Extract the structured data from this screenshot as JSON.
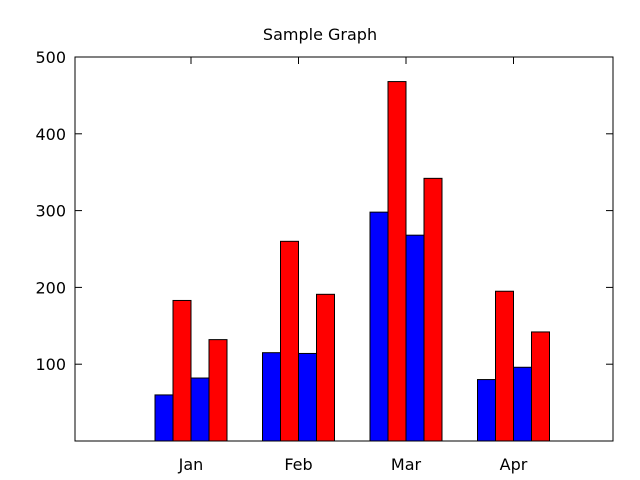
{
  "chart_data": {
    "type": "bar",
    "title": "Sample Graph",
    "xlabel": "",
    "ylabel": "",
    "categories": [
      "Jan",
      "Feb",
      "Mar",
      "Apr"
    ],
    "ylim": [
      0,
      500
    ],
    "yticks": [
      100,
      200,
      300,
      400,
      500
    ],
    "grid": false,
    "legend": "none",
    "bars_per_category": [
      [
        {
          "value": 60,
          "color": "#0000ff"
        },
        {
          "value": 183,
          "color": "#ff0000"
        },
        {
          "value": 82,
          "color": "#0000ff"
        },
        {
          "value": 132,
          "color": "#ff0000"
        }
      ],
      [
        {
          "value": 115,
          "color": "#0000ff"
        },
        {
          "value": 260,
          "color": "#ff0000"
        },
        {
          "value": 114,
          "color": "#0000ff"
        },
        {
          "value": 191,
          "color": "#ff0000"
        }
      ],
      [
        {
          "value": 298,
          "color": "#0000ff"
        },
        {
          "value": 468,
          "color": "#ff0000"
        },
        {
          "value": 268,
          "color": "#0000ff"
        },
        {
          "value": 342,
          "color": "#ff0000"
        }
      ],
      [
        {
          "value": 80,
          "color": "#0000ff"
        },
        {
          "value": 195,
          "color": "#ff0000"
        },
        {
          "value": 96,
          "color": "#0000ff"
        },
        {
          "value": 142,
          "color": "#ff0000"
        }
      ]
    ]
  }
}
